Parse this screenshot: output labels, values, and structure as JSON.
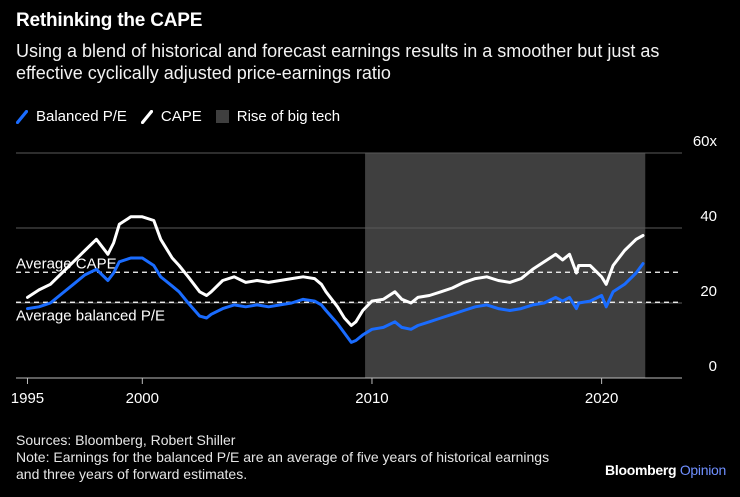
{
  "title": "Rethinking the CAPE",
  "subtitle": "Using a blend of historical and forecast earnings results in a smoother but just as effective cyclically adjusted price-earnings ratio",
  "legend": [
    {
      "name": "Balanced P/E",
      "color": "#1a6cff",
      "kind": "line"
    },
    {
      "name": "CAPE",
      "color": "#ffffff",
      "kind": "line"
    },
    {
      "name": "Rise of big tech",
      "color": "#3f3f3f",
      "kind": "area"
    }
  ],
  "footer": {
    "sources": "Sources: Bloomberg, Robert Shiller",
    "note": "Note: Earnings for the balanced P/E are an average of five years of historical earnings and three years of forward estimates."
  },
  "brand": {
    "name": "Bloomberg",
    "suffix": "Opinion"
  },
  "chart_data": {
    "type": "line",
    "title": "Rethinking the CAPE",
    "xlabel": "",
    "ylabel": "",
    "xlim": [
      1994.5,
      2023.5
    ],
    "ylim": [
      0,
      60
    ],
    "x_ticks": [
      1995,
      2000,
      2010,
      2020
    ],
    "y_ticks": [
      0,
      20,
      40,
      60
    ],
    "y_tick_labels": [
      "0",
      "20",
      "40",
      "60x"
    ],
    "grid": true,
    "shaded_region": {
      "label": "Rise of big tech",
      "x_start": 2009.7,
      "x_end": 2021.9
    },
    "reference_lines": [
      {
        "label": "Average CAPE",
        "value": 28.2
      },
      {
        "label": "Average balanced P/E",
        "value": 20.2
      }
    ],
    "series": [
      {
        "name": "CAPE",
        "color": "#ffffff",
        "x": [
          1995,
          1995.5,
          1996,
          1996.5,
          1997,
          1997.5,
          1998,
          1998.5,
          1998.75,
          1999,
          1999.5,
          2000,
          2000.5,
          2000.8,
          2001,
          2001.3,
          2001.6,
          2002,
          2002.5,
          2002.8,
          2003,
          2003.5,
          2004,
          2004.5,
          2005,
          2005.5,
          2006,
          2006.5,
          2007,
          2007.5,
          2007.8,
          2008,
          2008.5,
          2008.8,
          2009.1,
          2009.3,
          2009.6,
          2010,
          2010.5,
          2011,
          2011.3,
          2011.7,
          2012,
          2012.5,
          2013,
          2013.5,
          2014,
          2014.5,
          2015,
          2015.5,
          2016,
          2016.5,
          2017,
          2017.5,
          2018,
          2018.3,
          2018.6,
          2018.9,
          2019,
          2019.5,
          2020,
          2020.2,
          2020.5,
          2021,
          2021.5,
          2021.8
        ],
        "values": [
          21.5,
          23.5,
          25,
          28,
          31,
          34,
          37,
          33,
          36,
          41,
          43,
          43,
          42,
          37,
          35,
          32,
          30,
          27,
          23,
          22,
          23,
          26,
          27,
          25.5,
          26,
          25.5,
          26,
          26.5,
          27,
          26.5,
          25,
          23,
          19,
          16,
          14,
          15,
          18,
          20.5,
          21,
          23,
          21,
          20,
          21.5,
          22,
          23,
          24,
          25.5,
          26.5,
          27,
          26,
          25.5,
          26.5,
          29,
          31,
          33,
          31.5,
          33,
          28,
          30,
          30,
          27,
          25,
          30,
          34,
          37,
          38
        ]
      },
      {
        "name": "Balanced P/E",
        "color": "#1a6cff",
        "x": [
          1995,
          1995.5,
          1996,
          1996.5,
          1997,
          1997.5,
          1998,
          1998.5,
          1998.75,
          1999,
          1999.5,
          2000,
          2000.5,
          2000.8,
          2001,
          2001.3,
          2001.6,
          2002,
          2002.5,
          2002.8,
          2003,
          2003.5,
          2004,
          2004.5,
          2005,
          2005.5,
          2006,
          2006.5,
          2007,
          2007.5,
          2007.8,
          2008,
          2008.5,
          2008.8,
          2009.1,
          2009.3,
          2009.6,
          2010,
          2010.5,
          2011,
          2011.3,
          2011.7,
          2012,
          2012.5,
          2013,
          2013.5,
          2014,
          2014.5,
          2015,
          2015.5,
          2016,
          2016.5,
          2017,
          2017.5,
          2018,
          2018.3,
          2018.6,
          2018.9,
          2019,
          2019.5,
          2020,
          2020.2,
          2020.5,
          2021,
          2021.5,
          2021.8
        ],
        "values": [
          18.5,
          19,
          20,
          22.5,
          25,
          27.5,
          29,
          26,
          28,
          31,
          32,
          32,
          30,
          27,
          26,
          24.5,
          23,
          20,
          16.5,
          16,
          17,
          18.5,
          19.5,
          19,
          19.5,
          19,
          19.5,
          20,
          21,
          20.5,
          19.5,
          18,
          14.5,
          12,
          9.5,
          10,
          11.5,
          13,
          13.5,
          15,
          13.5,
          13,
          14,
          15,
          16,
          17,
          18,
          19,
          19.5,
          18.5,
          18,
          18.5,
          19.5,
          20,
          21.5,
          20.5,
          21.5,
          18.5,
          20,
          20.5,
          22,
          19,
          23,
          25,
          28,
          30.5
        ]
      }
    ]
  }
}
